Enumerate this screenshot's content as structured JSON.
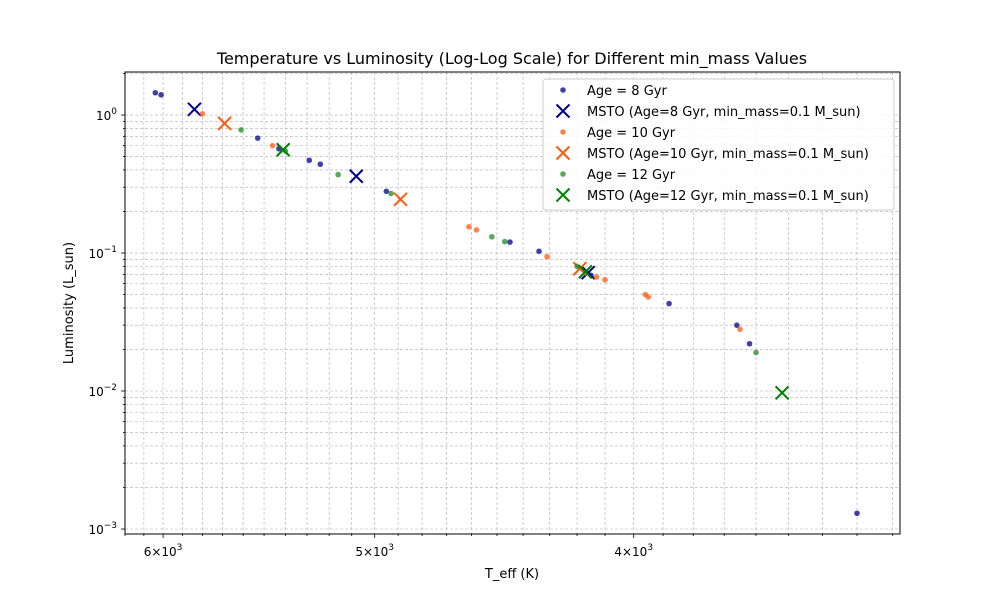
{
  "chart_data": {
    "type": "scatter",
    "title": "Temperature vs Luminosity (Log-Log Scale) for Different min_mass Values",
    "xlabel": "T_eff (K)",
    "ylabel": "Luminosity (L_sun)",
    "x_scale": "log",
    "y_scale": "log",
    "x_inverted": true,
    "xlim": [
      6200,
      3180
    ],
    "ylim": [
      0.00092,
      2.05
    ],
    "grid": true,
    "legend_position": "top-right",
    "x_major_ticks": [
      {
        "value": 6000,
        "base": "6",
        "exp": "3"
      },
      {
        "value": 5000,
        "base": "5",
        "exp": "3"
      },
      {
        "value": 4000,
        "base": "4",
        "exp": "3"
      }
    ],
    "y_major_ticks": [
      {
        "value": 1,
        "base": "10",
        "exp": "0"
      },
      {
        "value": 0.1,
        "base": "10",
        "exp": "−1"
      },
      {
        "value": 0.01,
        "base": "10",
        "exp": "−2"
      },
      {
        "value": 0.001,
        "base": "10",
        "exp": "−3"
      }
    ],
    "series": [
      {
        "name": "Age = 8 Gyr",
        "color": "#00008b",
        "marker": "dot",
        "points": [
          {
            "x": 6040,
            "y": 1.45
          },
          {
            "x": 6010,
            "y": 1.4
          },
          {
            "x": 5530,
            "y": 0.68
          },
          {
            "x": 5430,
            "y": 0.57
          },
          {
            "x": 5290,
            "y": 0.47
          },
          {
            "x": 5240,
            "y": 0.44
          },
          {
            "x": 4950,
            "y": 0.28
          },
          {
            "x": 4450,
            "y": 0.12
          },
          {
            "x": 4340,
            "y": 0.103
          },
          {
            "x": 4150,
            "y": 0.069
          },
          {
            "x": 3880,
            "y": 0.043
          },
          {
            "x": 3660,
            "y": 0.03
          },
          {
            "x": 3620,
            "y": 0.022
          },
          {
            "x": 3300,
            "y": 0.0013
          }
        ]
      },
      {
        "name": "MSTO (Age=8 Gyr, min_mass=0.1 M_sun)",
        "color": "#00008b",
        "marker": "x",
        "points": [
          {
            "x": 5840,
            "y": 1.1
          },
          {
            "x": 5080,
            "y": 0.36
          },
          {
            "x": 4160,
            "y": 0.072
          }
        ]
      },
      {
        "name": "Age = 10 Gyr",
        "color": "#ff5a0d",
        "marker": "dot",
        "points": [
          {
            "x": 5800,
            "y": 1.02
          },
          {
            "x": 5460,
            "y": 0.6
          },
          {
            "x": 4610,
            "y": 0.155
          },
          {
            "x": 4580,
            "y": 0.147
          },
          {
            "x": 4310,
            "y": 0.094
          },
          {
            "x": 4130,
            "y": 0.067
          },
          {
            "x": 4100,
            "y": 0.064
          },
          {
            "x": 3960,
            "y": 0.05
          },
          {
            "x": 3950,
            "y": 0.048
          },
          {
            "x": 3650,
            "y": 0.028
          }
        ]
      },
      {
        "name": "MSTO (Age=10 Gyr, min_mass=0.1 M_sun)",
        "color": "#ff5a0d",
        "marker": "x",
        "points": [
          {
            "x": 5690,
            "y": 0.87
          },
          {
            "x": 4890,
            "y": 0.245
          },
          {
            "x": 4190,
            "y": 0.077
          }
        ]
      },
      {
        "name": "Age = 12 Gyr",
        "color": "#228b22",
        "marker": "dot",
        "points": [
          {
            "x": 5610,
            "y": 0.78
          },
          {
            "x": 5400,
            "y": 0.55
          },
          {
            "x": 5160,
            "y": 0.37
          },
          {
            "x": 4930,
            "y": 0.27
          },
          {
            "x": 4520,
            "y": 0.131
          },
          {
            "x": 4470,
            "y": 0.121
          },
          {
            "x": 4200,
            "y": 0.08
          },
          {
            "x": 3600,
            "y": 0.019
          }
        ]
      },
      {
        "name": "MSTO (Age=12 Gyr, min_mass=0.1 M_sun)",
        "color": "#008000",
        "marker": "x",
        "points": [
          {
            "x": 5410,
            "y": 0.56
          },
          {
            "x": 4170,
            "y": 0.073
          },
          {
            "x": 3520,
            "y": 0.0097
          }
        ]
      }
    ]
  }
}
